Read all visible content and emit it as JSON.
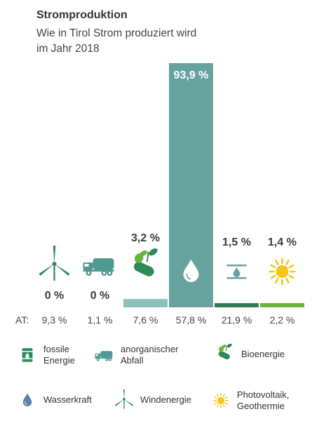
{
  "title": "Stromproduktion",
  "subtitle_line1": "Wie in Tirol Strom produziert wird",
  "subtitle_line2": "im Jahr 2018",
  "colors": {
    "bar_main": "#66a39e",
    "bar_light": "#8fbfba",
    "bar_dark": "#2f7a57",
    "bar_green": "#6ab43a",
    "icon_green": "#2f8a58",
    "icon_teal": "#4f9a93",
    "icon_leaf": "#6ab43a",
    "icon_drop": "#5b7fae",
    "icon_sun": "#f5c518"
  },
  "chart_data": {
    "type": "bar",
    "categories": [
      "Windenergie",
      "anorganischer Abfall",
      "Bioenergie",
      "Wasserkraft",
      "fossile Energie",
      "Photovoltaik, Geothermie"
    ],
    "values": [
      0,
      0,
      3.2,
      93.9,
      1.5,
      1.4
    ],
    "value_labels": [
      "0 %",
      "0 %",
      "3,2 %",
      "93,9 %",
      "1,5 %",
      "1,4 %"
    ],
    "at_label": "AT:",
    "at_values": [
      "9,3 %",
      "1,1 %",
      "7,6 %",
      "57,8 %",
      "21,9 %",
      "2,2 %"
    ],
    "ylim": [
      0,
      100
    ]
  },
  "legend": [
    {
      "label": "fossile\nEnergie",
      "icon": "oil-barrel-icon"
    },
    {
      "label": "anorganischer\nAbfall",
      "icon": "truck-icon"
    },
    {
      "label": "Bioenergie",
      "icon": "log-sprout-icon"
    },
    {
      "label": "Wasserkraft",
      "icon": "water-drop-icon"
    },
    {
      "label": "Windenergie",
      "icon": "wind-turbine-icon"
    },
    {
      "label": "Photovoltaik,\nGeothermie",
      "icon": "sun-icon"
    }
  ]
}
